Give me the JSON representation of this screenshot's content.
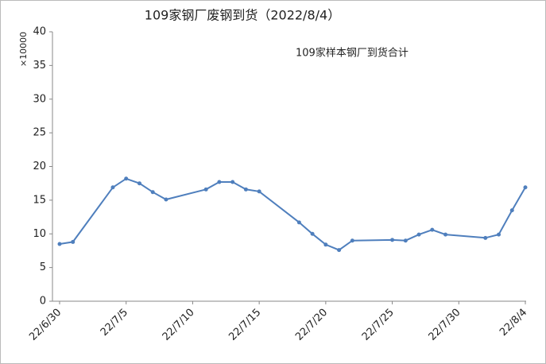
{
  "chart_data": {
    "type": "line",
    "title": "109家钢厂废钢到货（2022/8/4）",
    "y_unit": "×10000",
    "x": [
      "22/6/30",
      "22/7/1",
      "22/7/4",
      "22/7/5",
      "22/7/6",
      "22/7/7",
      "22/7/8",
      "22/7/11",
      "22/7/12",
      "22/7/13",
      "22/7/14",
      "22/7/15",
      "22/7/18",
      "22/7/19",
      "22/7/20",
      "22/7/21",
      "22/7/22",
      "22/7/25",
      "22/7/26",
      "22/7/27",
      "22/7/28",
      "22/7/29",
      "22/8/1",
      "22/8/2",
      "22/8/3",
      "22/8/4"
    ],
    "series": [
      {
        "name": "109家样本钢厂到货合计",
        "color": "#4f7fbd",
        "values": [
          8.5,
          8.8,
          16.9,
          18.2,
          17.5,
          16.2,
          15.1,
          16.6,
          17.7,
          17.7,
          16.6,
          16.3,
          11.7,
          10.0,
          8.4,
          7.6,
          9.0,
          9.1,
          9.0,
          9.9,
          10.6,
          9.9,
          9.4,
          9.9,
          13.5,
          16.9
        ]
      }
    ],
    "xlim": [
      "22/6/30",
      "22/8/4"
    ],
    "xticks": [
      "22/6/30",
      "22/7/5",
      "22/7/10",
      "22/7/15",
      "22/7/20",
      "22/7/25",
      "22/7/30",
      "22/8/4"
    ],
    "ylim": [
      0,
      40
    ],
    "yticks": [
      0,
      5,
      10,
      15,
      20,
      25,
      30,
      35,
      40
    ],
    "grid": false
  }
}
